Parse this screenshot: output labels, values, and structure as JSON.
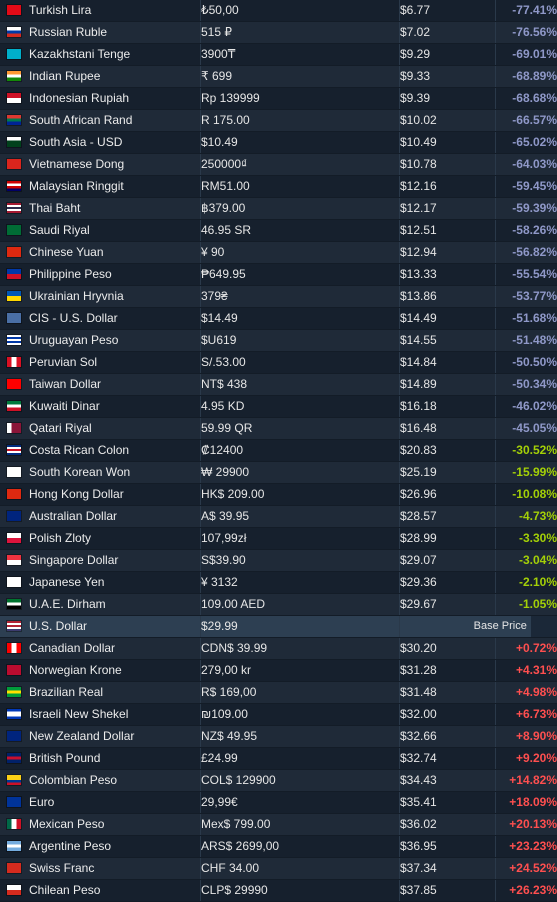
{
  "base_label": "Base Price",
  "rows": [
    {
      "country": "Turkish Lira",
      "local": "₺50,00",
      "usd": "$6.77",
      "diff": "-77.41%",
      "flag": [
        "#e30a17",
        "#e30a17"
      ],
      "flag_icon": "turkey-flag-icon"
    },
    {
      "country": "Russian Ruble",
      "local": "515 ₽",
      "usd": "$7.02",
      "diff": "-76.56%",
      "flag": [
        "#ffffff",
        "#0039a6",
        "#d52b1e"
      ],
      "flag_icon": "russia-flag-icon"
    },
    {
      "country": "Kazakhstani Tenge",
      "local": "3900₸",
      "usd": "$9.29",
      "diff": "-69.01%",
      "flag": [
        "#00afca",
        "#00afca"
      ],
      "flag_icon": "kazakhstan-flag-icon"
    },
    {
      "country": "Indian Rupee",
      "local": "₹ 699",
      "usd": "$9.33",
      "diff": "-68.89%",
      "flag": [
        "#ff9933",
        "#ffffff",
        "#138808"
      ],
      "flag_icon": "india-flag-icon"
    },
    {
      "country": "Indonesian Rupiah",
      "local": "Rp 139999",
      "usd": "$9.39",
      "diff": "-68.68%",
      "flag": [
        "#ce1126",
        "#ffffff"
      ],
      "flag_icon": "indonesia-flag-icon"
    },
    {
      "country": "South African Rand",
      "local": "R 175.00",
      "usd": "$10.02",
      "diff": "-66.57%",
      "flag": [
        "#de3831",
        "#007a4d",
        "#002395"
      ],
      "flag_icon": "south-africa-flag-icon"
    },
    {
      "country": "South Asia - USD",
      "local": "$10.49",
      "usd": "$10.49",
      "diff": "-65.02%",
      "flag": [
        "#ffffff",
        "#01411c",
        "#01411c"
      ],
      "flag_icon": "pakistan-flag-icon"
    },
    {
      "country": "Vietnamese Dong",
      "local": "250000₫",
      "usd": "$10.78",
      "diff": "-64.03%",
      "flag": [
        "#da251d",
        "#da251d"
      ],
      "flag_icon": "vietnam-flag-icon"
    },
    {
      "country": "Malaysian Ringgit",
      "local": "RM51.00",
      "usd": "$12.16",
      "diff": "-59.45%",
      "flag": [
        "#cc0001",
        "#ffffff",
        "#cc0001",
        "#010066"
      ],
      "flag_icon": "malaysia-flag-icon"
    },
    {
      "country": "Thai Baht",
      "local": "฿379.00",
      "usd": "$12.17",
      "diff": "-59.39%",
      "flag": [
        "#a51931",
        "#ffffff",
        "#2d2a4a",
        "#ffffff",
        "#a51931"
      ],
      "flag_icon": "thailand-flag-icon"
    },
    {
      "country": "Saudi Riyal",
      "local": "46.95 SR",
      "usd": "$12.51",
      "diff": "-58.26%",
      "flag": [
        "#006c35",
        "#006c35"
      ],
      "flag_icon": "saudi-arabia-flag-icon"
    },
    {
      "country": "Chinese Yuan",
      "local": "¥ 90",
      "usd": "$12.94",
      "diff": "-56.82%",
      "flag": [
        "#de2910",
        "#de2910"
      ],
      "flag_icon": "china-flag-icon"
    },
    {
      "country": "Philippine Peso",
      "local": "₱649.95",
      "usd": "$13.33",
      "diff": "-55.54%",
      "flag": [
        "#0038a8",
        "#ce1126"
      ],
      "flag_icon": "philippines-flag-icon"
    },
    {
      "country": "Ukrainian Hryvnia",
      "local": "379₴",
      "usd": "$13.86",
      "diff": "-53.77%",
      "flag": [
        "#0057b7",
        "#ffd700"
      ],
      "flag_icon": "ukraine-flag-icon"
    },
    {
      "country": "CIS - U.S. Dollar",
      "local": "$14.49",
      "usd": "$14.49",
      "diff": "-51.68%",
      "flag": [
        "#4a6fa5",
        "#4a6fa5"
      ],
      "flag_icon": "cis-flag-icon"
    },
    {
      "country": "Uruguayan Peso",
      "local": "$U619",
      "usd": "$14.55",
      "diff": "-51.48%",
      "flag": [
        "#ffffff",
        "#0038a8",
        "#ffffff",
        "#0038a8",
        "#ffffff"
      ],
      "flag_icon": "uruguay-flag-icon"
    },
    {
      "country": "Peruvian Sol",
      "local": "S/.53.00",
      "usd": "$14.84",
      "diff": "-50.50%",
      "flag": [
        "#d91023",
        "#ffffff",
        "#d91023"
      ],
      "flag_icon": "peru-flag-icon",
      "vertical": true
    },
    {
      "country": "Taiwan Dollar",
      "local": "NT$ 438",
      "usd": "$14.89",
      "diff": "-50.34%",
      "flag": [
        "#fe0000",
        "#fe0000"
      ],
      "flag_icon": "taiwan-flag-icon"
    },
    {
      "country": "Kuwaiti Dinar",
      "local": "4.95 KD",
      "usd": "$16.18",
      "diff": "-46.02%",
      "flag": [
        "#007a3d",
        "#ffffff",
        "#ce1126"
      ],
      "flag_icon": "kuwait-flag-icon"
    },
    {
      "country": "Qatari Riyal",
      "local": "59.99 QR",
      "usd": "$16.48",
      "diff": "-45.05%",
      "flag": [
        "#ffffff",
        "#8a1538",
        "#8a1538"
      ],
      "flag_icon": "qatar-flag-icon",
      "vertical": true
    },
    {
      "country": "Costa Rican Colon",
      "local": "₡12400",
      "usd": "$20.83",
      "diff": "-30.52%",
      "flag": [
        "#002b7f",
        "#ffffff",
        "#ce1126",
        "#ffffff",
        "#002b7f"
      ],
      "flag_icon": "costa-rica-flag-icon"
    },
    {
      "country": "South Korean Won",
      "local": "₩ 29900",
      "usd": "$25.19",
      "diff": "-15.99%",
      "flag": [
        "#ffffff",
        "#ffffff"
      ],
      "flag_icon": "south-korea-flag-icon"
    },
    {
      "country": "Hong Kong Dollar",
      "local": "HK$ 209.00",
      "usd": "$26.96",
      "diff": "-10.08%",
      "flag": [
        "#de2910",
        "#de2910"
      ],
      "flag_icon": "hong-kong-flag-icon"
    },
    {
      "country": "Australian Dollar",
      "local": "A$ 39.95",
      "usd": "$28.57",
      "diff": "-4.73%",
      "flag": [
        "#00247d",
        "#00247d"
      ],
      "flag_icon": "australia-flag-icon"
    },
    {
      "country": "Polish Zloty",
      "local": "107,99zł",
      "usd": "$28.99",
      "diff": "-3.30%",
      "flag": [
        "#ffffff",
        "#dc143c"
      ],
      "flag_icon": "poland-flag-icon"
    },
    {
      "country": "Singapore Dollar",
      "local": "S$39.90",
      "usd": "$29.07",
      "diff": "-3.04%",
      "flag": [
        "#ef3340",
        "#ffffff"
      ],
      "flag_icon": "singapore-flag-icon"
    },
    {
      "country": "Japanese Yen",
      "local": "¥ 3132",
      "usd": "$29.36",
      "diff": "-2.10%",
      "flag": [
        "#ffffff",
        "#ffffff"
      ],
      "flag_icon": "japan-flag-icon"
    },
    {
      "country": "U.A.E. Dirham",
      "local": "109.00 AED",
      "usd": "$29.67",
      "diff": "-1.05%",
      "flag": [
        "#00732f",
        "#ffffff",
        "#000000"
      ],
      "flag_icon": "uae-flag-icon"
    },
    {
      "country": "U.S. Dollar",
      "local": "$29.99",
      "usd": "",
      "diff": "",
      "base": true,
      "flag": [
        "#b22234",
        "#ffffff",
        "#b22234",
        "#ffffff",
        "#3c3b6e"
      ],
      "flag_icon": "usa-flag-icon"
    },
    {
      "country": "Canadian Dollar",
      "local": "CDN$ 39.99",
      "usd": "$30.20",
      "diff": "+0.72%",
      "flag": [
        "#ff0000",
        "#ffffff",
        "#ff0000"
      ],
      "flag_icon": "canada-flag-icon",
      "vertical": true
    },
    {
      "country": "Norwegian Krone",
      "local": "279,00 kr",
      "usd": "$31.28",
      "diff": "+4.31%",
      "flag": [
        "#ba0c2f",
        "#ba0c2f"
      ],
      "flag_icon": "norway-flag-icon"
    },
    {
      "country": "Brazilian Real",
      "local": "R$ 169,00",
      "usd": "$31.48",
      "diff": "+4.98%",
      "flag": [
        "#009c3b",
        "#ffdf00",
        "#009c3b"
      ],
      "flag_icon": "brazil-flag-icon"
    },
    {
      "country": "Israeli New Shekel",
      "local": "₪109.00",
      "usd": "$32.00",
      "diff": "+6.73%",
      "flag": [
        "#0038b8",
        "#ffffff",
        "#ffffff",
        "#0038b8"
      ],
      "flag_icon": "israel-flag-icon"
    },
    {
      "country": "New Zealand Dollar",
      "local": "NZ$ 49.95",
      "usd": "$32.66",
      "diff": "+8.90%",
      "flag": [
        "#00247d",
        "#00247d"
      ],
      "flag_icon": "new-zealand-flag-icon"
    },
    {
      "country": "British Pound",
      "local": "£24.99",
      "usd": "$32.74",
      "diff": "+9.20%",
      "flag": [
        "#012169",
        "#c8102e",
        "#012169"
      ],
      "flag_icon": "uk-flag-icon"
    },
    {
      "country": "Colombian Peso",
      "local": "COL$ 129900",
      "usd": "$34.43",
      "diff": "+14.82%",
      "flag": [
        "#fcd116",
        "#fcd116",
        "#003893",
        "#ce1126"
      ],
      "flag_icon": "colombia-flag-icon"
    },
    {
      "country": "Euro",
      "local": "29,99€",
      "usd": "$35.41",
      "diff": "+18.09%",
      "flag": [
        "#003399",
        "#003399"
      ],
      "flag_icon": "eu-flag-icon"
    },
    {
      "country": "Mexican Peso",
      "local": "Mex$ 799.00",
      "usd": "$36.02",
      "diff": "+20.13%",
      "flag": [
        "#006847",
        "#ffffff",
        "#ce1126"
      ],
      "flag_icon": "mexico-flag-icon",
      "vertical": true
    },
    {
      "country": "Argentine Peso",
      "local": "ARS$ 2699,00",
      "usd": "$36.95",
      "diff": "+23.23%",
      "flag": [
        "#74acdf",
        "#ffffff",
        "#74acdf"
      ],
      "flag_icon": "argentina-flag-icon"
    },
    {
      "country": "Swiss Franc",
      "local": "CHF 34.00",
      "usd": "$37.34",
      "diff": "+24.52%",
      "flag": [
        "#d52b1e",
        "#d52b1e"
      ],
      "flag_icon": "switzerland-flag-icon"
    },
    {
      "country": "Chilean Peso",
      "local": "CLP$ 29990",
      "usd": "$37.85",
      "diff": "+26.23%",
      "flag": [
        "#ffffff",
        "#d52b1e"
      ],
      "flag_icon": "chile-flag-icon"
    }
  ]
}
